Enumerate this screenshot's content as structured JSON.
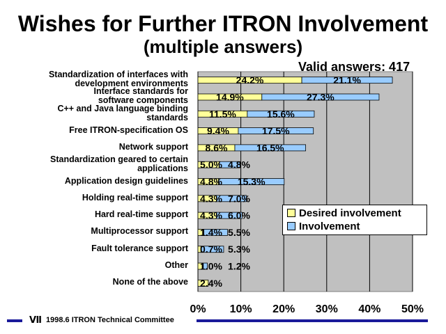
{
  "chart_data": {
    "type": "bar",
    "stacked": true,
    "orientation": "horizontal",
    "title": "Wishes for Further ITRON Involvement",
    "subtitle": "(multiple answers)",
    "note": "Valid answers: 417",
    "categories": [
      "Standardization of interfaces with development environments",
      "Interface standards for software components",
      "C++ and Java language binding standards",
      "Free ITRON-specification OS",
      "Network support",
      "Standardization geared to certain applications",
      "Application design guidelines",
      "Holding real-time support",
      "Hard real-time support",
      "Multiprocessor support",
      "Fault tolerance support",
      "Other",
      "None of the above"
    ],
    "category_lines": [
      [
        "Standardization of interfaces with",
        "development environments"
      ],
      [
        "Interface standards for",
        "software components"
      ],
      [
        "C++ and Java language binding",
        "standards"
      ],
      [
        "Free ITRON-specification OS"
      ],
      [
        "Network support"
      ],
      [
        "Standardization geared to certain",
        "applications"
      ],
      [
        "Application design guidelines"
      ],
      [
        "Holding real-time support"
      ],
      [
        "Hard real-time support"
      ],
      [
        "Multiprocessor support"
      ],
      [
        "Fault tolerance support"
      ],
      [
        "Other"
      ],
      [
        "None of the above"
      ]
    ],
    "series": [
      {
        "name": "Desired involvement",
        "values": [
          24.2,
          14.9,
          11.5,
          9.4,
          8.6,
          5.0,
          4.8,
          4.3,
          4.3,
          1.4,
          0.7,
          1.0,
          2.4
        ],
        "labels": [
          "24.2%",
          "14.9%",
          "11.5%",
          "9.4%",
          "8.6%",
          "5.0%",
          "4.8%",
          "4.3%",
          "4.3%",
          "1.4%",
          "0.7%",
          "1.0%",
          "2.4%"
        ],
        "color": "#ffff99"
      },
      {
        "name": "Involvement",
        "values": [
          21.1,
          27.3,
          15.6,
          17.5,
          16.5,
          4.8,
          15.3,
          7.0,
          6.0,
          5.5,
          5.3,
          1.2,
          0.0
        ],
        "labels": [
          "21.1%",
          "27.3%",
          "15.6%",
          "17.5%",
          "16.5%",
          "4.8%",
          "15.3%",
          "7.0%",
          "6.0%",
          "5.5%",
          "5.3%",
          "1.2%",
          ""
        ],
        "color": "#99ccff"
      }
    ],
    "xlim": [
      0,
      50
    ],
    "xticks": [
      0,
      10,
      20,
      30,
      40,
      50
    ],
    "xtick_labels": [
      "0%",
      "10%",
      "20%",
      "30%",
      "40%",
      "50%"
    ],
    "plot_background": "#c0c0c0",
    "grid": true,
    "legend_position": "right-middle"
  },
  "footer": {
    "text": "1998.6  ITRON Technical Committee",
    "logo_glyph": "Ⅶ"
  },
  "colors": {
    "footer_line": "#1a1a9a"
  }
}
